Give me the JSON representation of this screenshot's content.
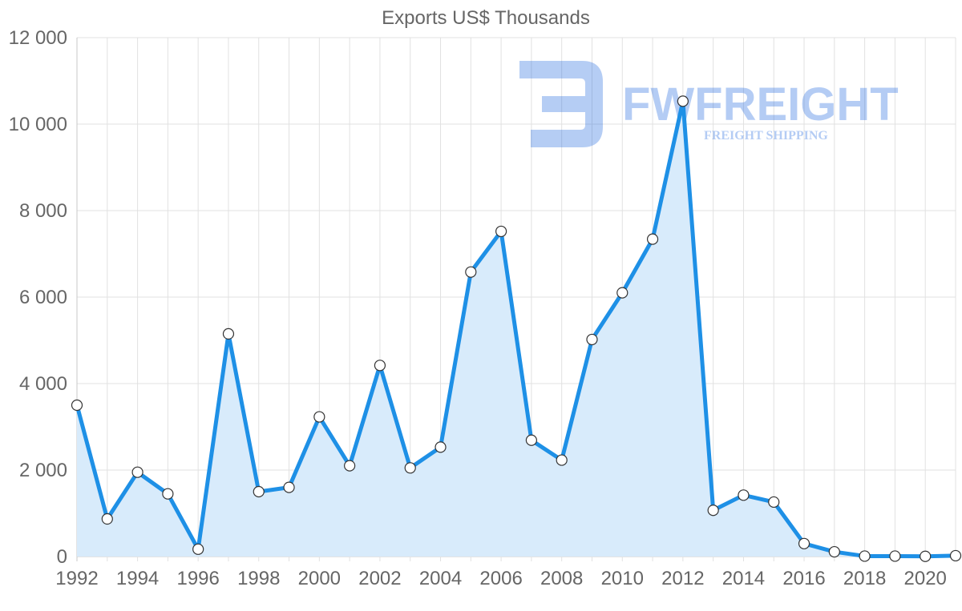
{
  "colors": {
    "line": "#1e90e6",
    "fill": "#d8ebfb",
    "watermark": "#2c6fe0"
  },
  "watermark": {
    "icon": "fwfreight-logo-icon",
    "wordmark": "FWFREIGHT",
    "tagline": "FREIGHT SHIPPING"
  },
  "chart_data": {
    "type": "area",
    "title": "Exports US$ Thousands",
    "xlabel": "",
    "ylabel": "",
    "x": [
      1992,
      1993,
      1994,
      1995,
      1996,
      1997,
      1998,
      1999,
      2000,
      2001,
      2002,
      2003,
      2004,
      2005,
      2006,
      2007,
      2008,
      2009,
      2010,
      2011,
      2012,
      2013,
      2014,
      2015,
      2016,
      2017,
      2018,
      2019,
      2020,
      2021
    ],
    "series": [
      {
        "name": "Exports US$ Thousands",
        "values": [
          3500,
          870,
          1950,
          1450,
          170,
          5150,
          1500,
          1600,
          3230,
          2100,
          4420,
          2050,
          2530,
          6580,
          7520,
          2690,
          2230,
          5020,
          6100,
          7340,
          10530,
          1070,
          1420,
          1260,
          300,
          110,
          10,
          10,
          5,
          20
        ]
      }
    ],
    "xlim": [
      1992,
      2021
    ],
    "ylim": [
      0,
      12000
    ],
    "yticks": [
      {
        "value": 0,
        "label": "0"
      },
      {
        "value": 2000,
        "label": "2 000"
      },
      {
        "value": 4000,
        "label": "4 000"
      },
      {
        "value": 6000,
        "label": "6 000"
      },
      {
        "value": 8000,
        "label": "8 000"
      },
      {
        "value": 10000,
        "label": "10 000"
      },
      {
        "value": 12000,
        "label": "12 000"
      }
    ],
    "xticks": [
      {
        "value": 1992,
        "label": "1992"
      },
      {
        "value": 1994,
        "label": "1994"
      },
      {
        "value": 1996,
        "label": "1996"
      },
      {
        "value": 1998,
        "label": "1998"
      },
      {
        "value": 2000,
        "label": "2000"
      },
      {
        "value": 2002,
        "label": "2002"
      },
      {
        "value": 2004,
        "label": "2004"
      },
      {
        "value": 2006,
        "label": "2006"
      },
      {
        "value": 2008,
        "label": "2008"
      },
      {
        "value": 2010,
        "label": "2010"
      },
      {
        "value": 2012,
        "label": "2012"
      },
      {
        "value": 2014,
        "label": "2014"
      },
      {
        "value": 2016,
        "label": "2016"
      },
      {
        "value": 2018,
        "label": "2018"
      },
      {
        "value": 2020,
        "label": "2020"
      }
    ],
    "grid": true,
    "legend": "none"
  }
}
